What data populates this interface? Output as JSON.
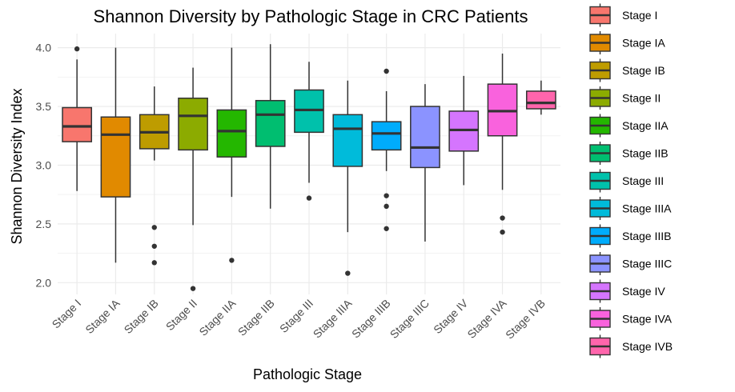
{
  "chart_data": {
    "type": "boxplot",
    "title": "Shannon Diversity by Pathologic Stage in CRC Patients",
    "xlabel": "Pathologic Stage",
    "ylabel": "Shannon Diversity Index",
    "ylim": [
      1.9,
      4.12
    ],
    "y_ticks": [
      2.0,
      2.5,
      3.0,
      3.5,
      4.0
    ],
    "grid": true,
    "legend_position": "right",
    "categories": [
      "Stage I",
      "Stage IA",
      "Stage IB",
      "Stage II",
      "Stage IIA",
      "Stage IIB",
      "Stage III",
      "Stage IIIA",
      "Stage IIIB",
      "Stage IIIC",
      "Stage IV",
      "Stage IVA",
      "Stage IVB"
    ],
    "series": [
      {
        "name": "Stage I",
        "color": "#F8766D",
        "whisker_low": 2.78,
        "q1": 3.2,
        "median": 3.33,
        "q3": 3.49,
        "whisker_high": 3.9,
        "outliers": [
          3.99
        ]
      },
      {
        "name": "Stage IA",
        "color": "#E18A00",
        "whisker_low": 2.17,
        "q1": 2.73,
        "median": 3.26,
        "q3": 3.41,
        "whisker_high": 4.0,
        "outliers": []
      },
      {
        "name": "Stage IB",
        "color": "#BE9C00",
        "whisker_low": 3.04,
        "q1": 3.14,
        "median": 3.28,
        "q3": 3.43,
        "whisker_high": 3.67,
        "outliers": [
          2.47,
          2.31,
          2.17
        ]
      },
      {
        "name": "Stage II",
        "color": "#8CAB00",
        "whisker_low": 2.49,
        "q1": 3.13,
        "median": 3.42,
        "q3": 3.57,
        "whisker_high": 3.83,
        "outliers": [
          1.95
        ]
      },
      {
        "name": "Stage IIA",
        "color": "#24B700",
        "whisker_low": 2.73,
        "q1": 3.07,
        "median": 3.29,
        "q3": 3.47,
        "whisker_high": 4.0,
        "outliers": [
          2.19
        ]
      },
      {
        "name": "Stage IIB",
        "color": "#00BE70",
        "whisker_low": 2.63,
        "q1": 3.16,
        "median": 3.43,
        "q3": 3.55,
        "whisker_high": 4.03,
        "outliers": []
      },
      {
        "name": "Stage III",
        "color": "#00C1AB",
        "whisker_low": 2.85,
        "q1": 3.28,
        "median": 3.47,
        "q3": 3.64,
        "whisker_high": 3.88,
        "outliers": [
          2.72
        ]
      },
      {
        "name": "Stage IIIA",
        "color": "#00BBDA",
        "whisker_low": 2.43,
        "q1": 2.99,
        "median": 3.31,
        "q3": 3.43,
        "whisker_high": 3.72,
        "outliers": [
          2.08
        ]
      },
      {
        "name": "Stage IIIB",
        "color": "#00ACFC",
        "whisker_low": 2.95,
        "q1": 3.13,
        "median": 3.27,
        "q3": 3.37,
        "whisker_high": 3.63,
        "outliers": [
          3.8,
          2.74,
          2.65,
          2.46
        ]
      },
      {
        "name": "Stage IIIC",
        "color": "#8B93FF",
        "whisker_low": 2.35,
        "q1": 2.98,
        "median": 3.15,
        "q3": 3.5,
        "whisker_high": 3.69,
        "outliers": []
      },
      {
        "name": "Stage IV",
        "color": "#D575FE",
        "whisker_low": 2.83,
        "q1": 3.12,
        "median": 3.3,
        "q3": 3.46,
        "whisker_high": 3.76,
        "outliers": []
      },
      {
        "name": "Stage IVA",
        "color": "#F962DD",
        "whisker_low": 2.79,
        "q1": 3.25,
        "median": 3.46,
        "q3": 3.69,
        "whisker_high": 3.95,
        "outliers": [
          2.55,
          2.43
        ]
      },
      {
        "name": "Stage IVB",
        "color": "#FF65AC",
        "whisker_low": 3.43,
        "q1": 3.48,
        "median": 3.53,
        "q3": 3.63,
        "whisker_high": 3.72,
        "outliers": []
      }
    ]
  }
}
